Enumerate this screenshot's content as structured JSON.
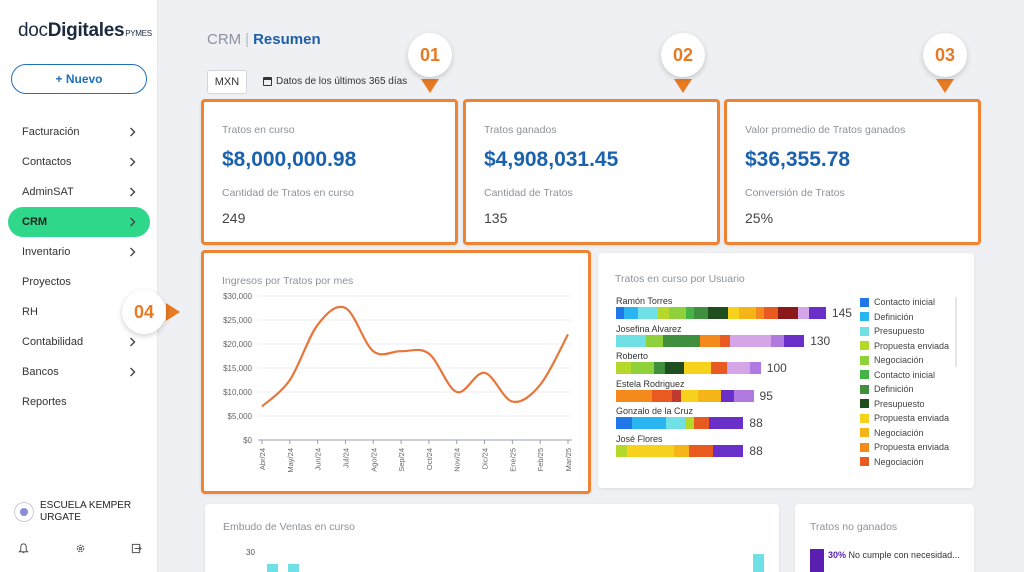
{
  "sidebar": {
    "logo": {
      "part1": "doc",
      "part2": "Digitales",
      "part3": "PYMES"
    },
    "new_button": "+ Nuevo",
    "items": [
      {
        "label": "Facturación",
        "chevron": true,
        "active": false
      },
      {
        "label": "Contactos",
        "chevron": true,
        "active": false
      },
      {
        "label": "AdminSAT",
        "chevron": true,
        "active": false
      },
      {
        "label": "CRM",
        "chevron": true,
        "active": true
      },
      {
        "label": "Inventario",
        "chevron": true,
        "active": false
      },
      {
        "label": "Proyectos",
        "chevron": false,
        "active": false
      },
      {
        "label": "RH",
        "chevron": false,
        "active": false
      },
      {
        "label": "Contabilidad",
        "chevron": true,
        "active": false
      },
      {
        "label": "Bancos",
        "chevron": true,
        "active": false
      },
      {
        "label": "Reportes",
        "chevron": false,
        "active": false
      }
    ],
    "user": {
      "line1": "ESCUELA KEMPER",
      "line2": "URGATE"
    },
    "footer_icons": [
      "bell-icon",
      "gear-icon",
      "logout-icon"
    ],
    "active_color": "#2fd78b"
  },
  "header": {
    "section": "CRM",
    "separator": "|",
    "page": "Resumen",
    "currency": "MXN",
    "date_range": "Datos de los últimos 365 días"
  },
  "callouts": [
    "01",
    "02",
    "03",
    "04"
  ],
  "callout_color": "#e87a22",
  "kpis": [
    {
      "label": "Tratos en curso",
      "value": "$8,000,000.98",
      "sub_label": "Cantidad de Tratos en curso",
      "sub_value": "249"
    },
    {
      "label": "Tratos ganados",
      "value": "$4,908,031.45",
      "sub_label": "Cantidad de Tratos",
      "sub_value": "135"
    },
    {
      "label": "Valor promedio de Tratos ganados",
      "value": "$36,355.78",
      "sub_label": "Conversión de Tratos",
      "sub_value": "25%"
    }
  ],
  "line_chart": {
    "title": "Ingresos por Tratos por mes",
    "chart_data": {
      "type": "line",
      "categories": [
        "Abr/24",
        "May/24",
        "Jun/24",
        "Jul/24",
        "Ago/24",
        "Sep/24",
        "Oct/24",
        "Nov/24",
        "Dic/24",
        "Ene/25",
        "Feb/25",
        "Mar/25"
      ],
      "values": [
        7000,
        12500,
        24000,
        27500,
        18500,
        18500,
        18000,
        10000,
        14000,
        8000,
        11500,
        22000
      ],
      "y_ticks": [
        "$0",
        "$5,000",
        "$10,000",
        "$15,000",
        "$20,000",
        "$25,000",
        "$30,000"
      ],
      "ylim": [
        0,
        30000
      ],
      "color": "#e8763b"
    }
  },
  "user_chart": {
    "title": "Tratos en curso por Usuario",
    "chart_data": {
      "type": "bar",
      "categories": [
        "Ramón Torres",
        "Josefina Alvarez",
        "Roberto",
        "Estela Rodriguez",
        "Gonzalo de la Cruz",
        "José Flores"
      ],
      "values": [
        145,
        130,
        100,
        95,
        88,
        88
      ],
      "legend": [
        {
          "label": "Contacto inicial",
          "color": "#1f77e8"
        },
        {
          "label": "Definición",
          "color": "#29b6f0"
        },
        {
          "label": "Presupuesto",
          "color": "#6fe0e6"
        },
        {
          "label": "Propuesta enviada",
          "color": "#b5d92a"
        },
        {
          "label": "Negociación",
          "color": "#8fd13a"
        },
        {
          "label": "Contacto inicial",
          "color": "#45b345"
        },
        {
          "label": "Definición",
          "color": "#3f8f3f"
        },
        {
          "label": "Presupuesto",
          "color": "#1f4f1f"
        },
        {
          "label": "Propuesta enviada",
          "color": "#f7d21c"
        },
        {
          "label": "Negociación",
          "color": "#f5b518"
        },
        {
          "label": "Propuesta enviada",
          "color": "#f48a1c"
        },
        {
          "label": "Negociación",
          "color": "#e85a1f"
        }
      ]
    }
  },
  "funnel": {
    "title": "Embudo de Ventas en curso",
    "y_tick": "30"
  },
  "lost": {
    "title": "Tratos no ganados",
    "pct": "30%",
    "text": "No cumple con necesidad..."
  }
}
